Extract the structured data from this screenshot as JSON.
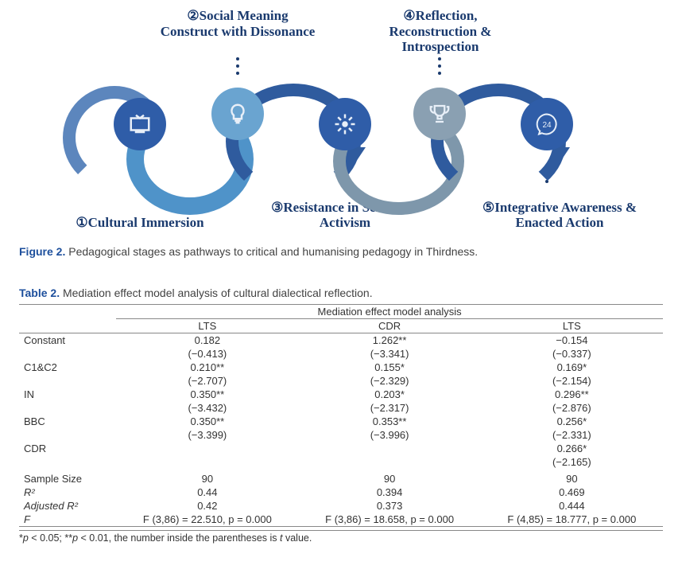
{
  "figure": {
    "caption_strong": "Figure 2.",
    "caption_text": "Pedagogical stages as pathways to critical and humanising pedagogy in Thirdness.",
    "label_color": "#1a3a6e",
    "label_fontsize": 17,
    "node_diameter": 66,
    "stages": [
      {
        "num": "①",
        "title": "Cultural Immersion",
        "position": "bottom",
        "node_color": "#2f5da8",
        "icon": "tv"
      },
      {
        "num": "②",
        "title": "Social Meaning Construct with Dissonance",
        "position": "top",
        "node_color": "#6aa4d0",
        "icon": "bulb"
      },
      {
        "num": "③",
        "title": "Resistance in Service of Activism",
        "position": "bottom",
        "node_color": "#2f5da8",
        "icon": "burst"
      },
      {
        "num": "④",
        "title": "Reflection, Reconstruction & Introspection",
        "position": "top",
        "node_color": "#8aa0b2",
        "icon": "trophy"
      },
      {
        "num": "⑤",
        "title": "Integrative Awareness & Enacted Action",
        "position": "bottom",
        "node_color": "#2f5da8",
        "icon": "phone24"
      }
    ],
    "arc_colors": {
      "lead_in": "#5c86bd",
      "arc12": "#4f93c9",
      "arc23": "#2f5b9e",
      "arc34": "#7e97ab",
      "arc45": "#2f5b9e"
    },
    "dot_color": "#1a3a6e"
  },
  "table": {
    "caption_strong": "Table 2.",
    "caption_text": "Mediation effect model analysis of cultural dialectical reflection.",
    "span_header": "Mediation effect model analysis",
    "col_headers": [
      "LTS",
      "CDR",
      "LTS"
    ],
    "rows": [
      {
        "label": "Constant",
        "c1": "0.182",
        "p1": "(−0.413)",
        "c2": "1.262**",
        "p2": "(−3.341)",
        "c3": "−0.154",
        "p3": "(−0.337)"
      },
      {
        "label": "C1&C2",
        "c1": "0.210**",
        "p1": "(−2.707)",
        "c2": "0.155*",
        "p2": "(−2.329)",
        "c3": "0.169*",
        "p3": "(−2.154)"
      },
      {
        "label": "IN",
        "c1": "0.350**",
        "p1": "(−3.432)",
        "c2": "0.203*",
        "p2": "(−2.317)",
        "c3": "0.296**",
        "p3": "(−2.876)"
      },
      {
        "label": "BBC",
        "c1": "0.350**",
        "p1": "(−3.399)",
        "c2": "0.353**",
        "p2": "(−3.996)",
        "c3": "0.256*",
        "p3": "(−2.331)"
      },
      {
        "label": "CDR",
        "c1": "",
        "p1": "",
        "c2": "",
        "p2": "",
        "c3": "0.266*",
        "p3": "(−2.165)"
      }
    ],
    "summary": [
      {
        "label": "Sample Size",
        "ital": false,
        "c1": "90",
        "c2": "90",
        "c3": "90"
      },
      {
        "label": "R²",
        "ital": true,
        "c1": "0.44",
        "c2": "0.394",
        "c3": "0.469"
      },
      {
        "label": "Adjusted R²",
        "ital": true,
        "c1": "0.42",
        "c2": "0.373",
        "c3": "0.444"
      },
      {
        "label": "F",
        "ital": true,
        "c1": "F (3,86) = 22.510, p = 0.000",
        "c2": "F (3,86) = 18.658, p = 0.000",
        "c3": "F (4,85) = 18.777, p = 0.000"
      }
    ],
    "footnote": "*p < 0.05; **p < 0.01, the number inside the parentheses is t value.",
    "font_size": 13,
    "border_color": "#888888"
  }
}
